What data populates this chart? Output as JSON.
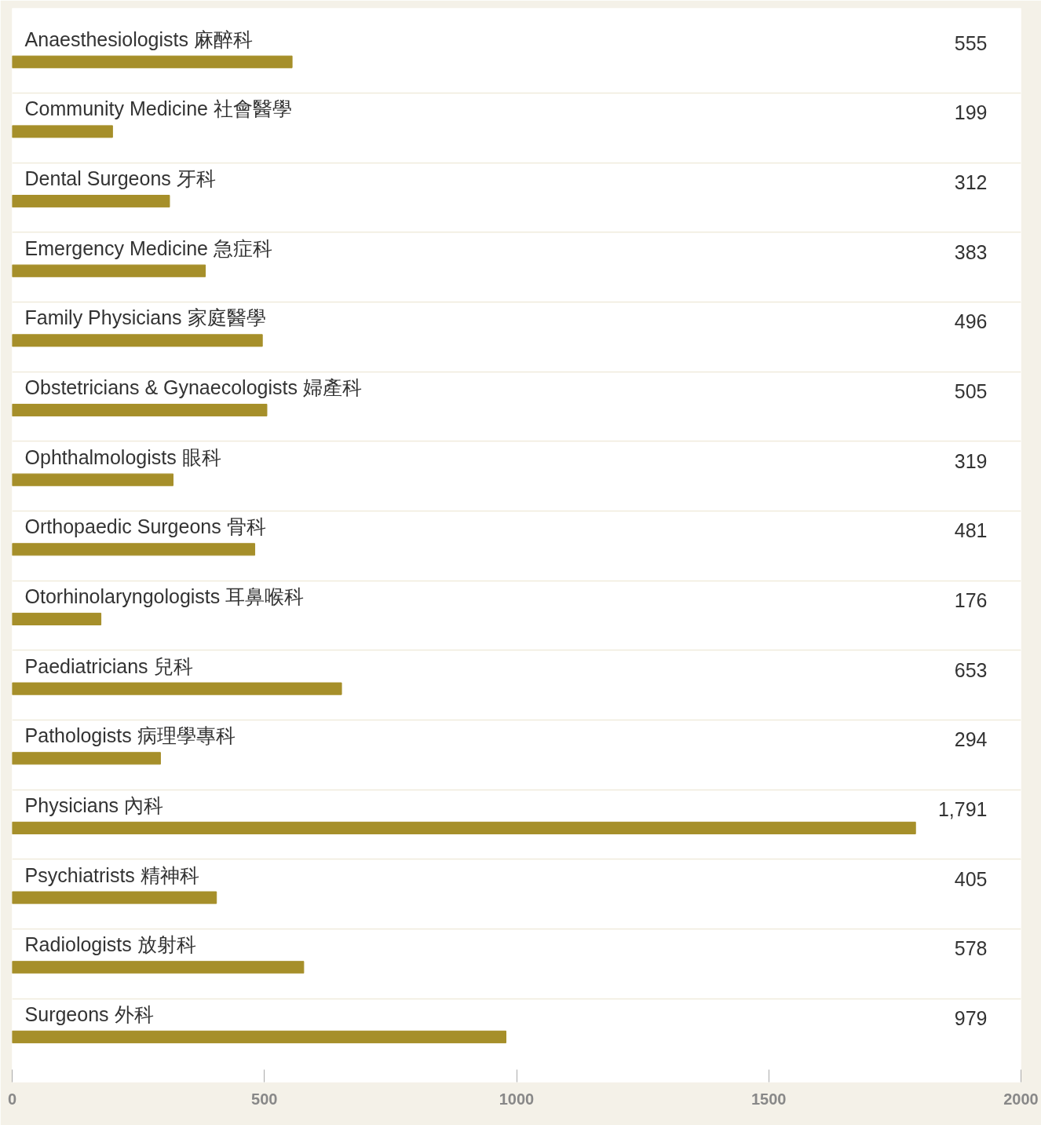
{
  "chart_data": {
    "type": "bar",
    "orientation": "horizontal",
    "categories": [
      "Anaesthesiologists 麻醉科",
      "Community Medicine 社會醫學",
      "Dental Surgeons 牙科",
      "Emergency Medicine 急症科",
      "Family Physicians 家庭醫學",
      "Obstetricians & Gynaecologists 婦產科",
      "Ophthalmologists 眼科",
      "Orthopaedic Surgeons 骨科",
      "Otorhinolaryngologists 耳鼻喉科",
      "Paediatricians 兒科",
      "Pathologists 病理學專科",
      "Physicians 內科",
      "Psychiatrists 精神科",
      "Radiologists 放射科",
      "Surgeons 外科"
    ],
    "values": [
      555,
      199,
      312,
      383,
      496,
      505,
      319,
      481,
      176,
      653,
      294,
      1791,
      405,
      578,
      979
    ],
    "value_labels": [
      "555",
      "199",
      "312",
      "383",
      "496",
      "505",
      "319",
      "481",
      "176",
      "653",
      "294",
      "1,791",
      "405",
      "578",
      "979"
    ],
    "color": "#a68f2a",
    "xlim": [
      0,
      2000
    ],
    "xticks": [
      0,
      500,
      1000,
      1500,
      2000
    ]
  }
}
